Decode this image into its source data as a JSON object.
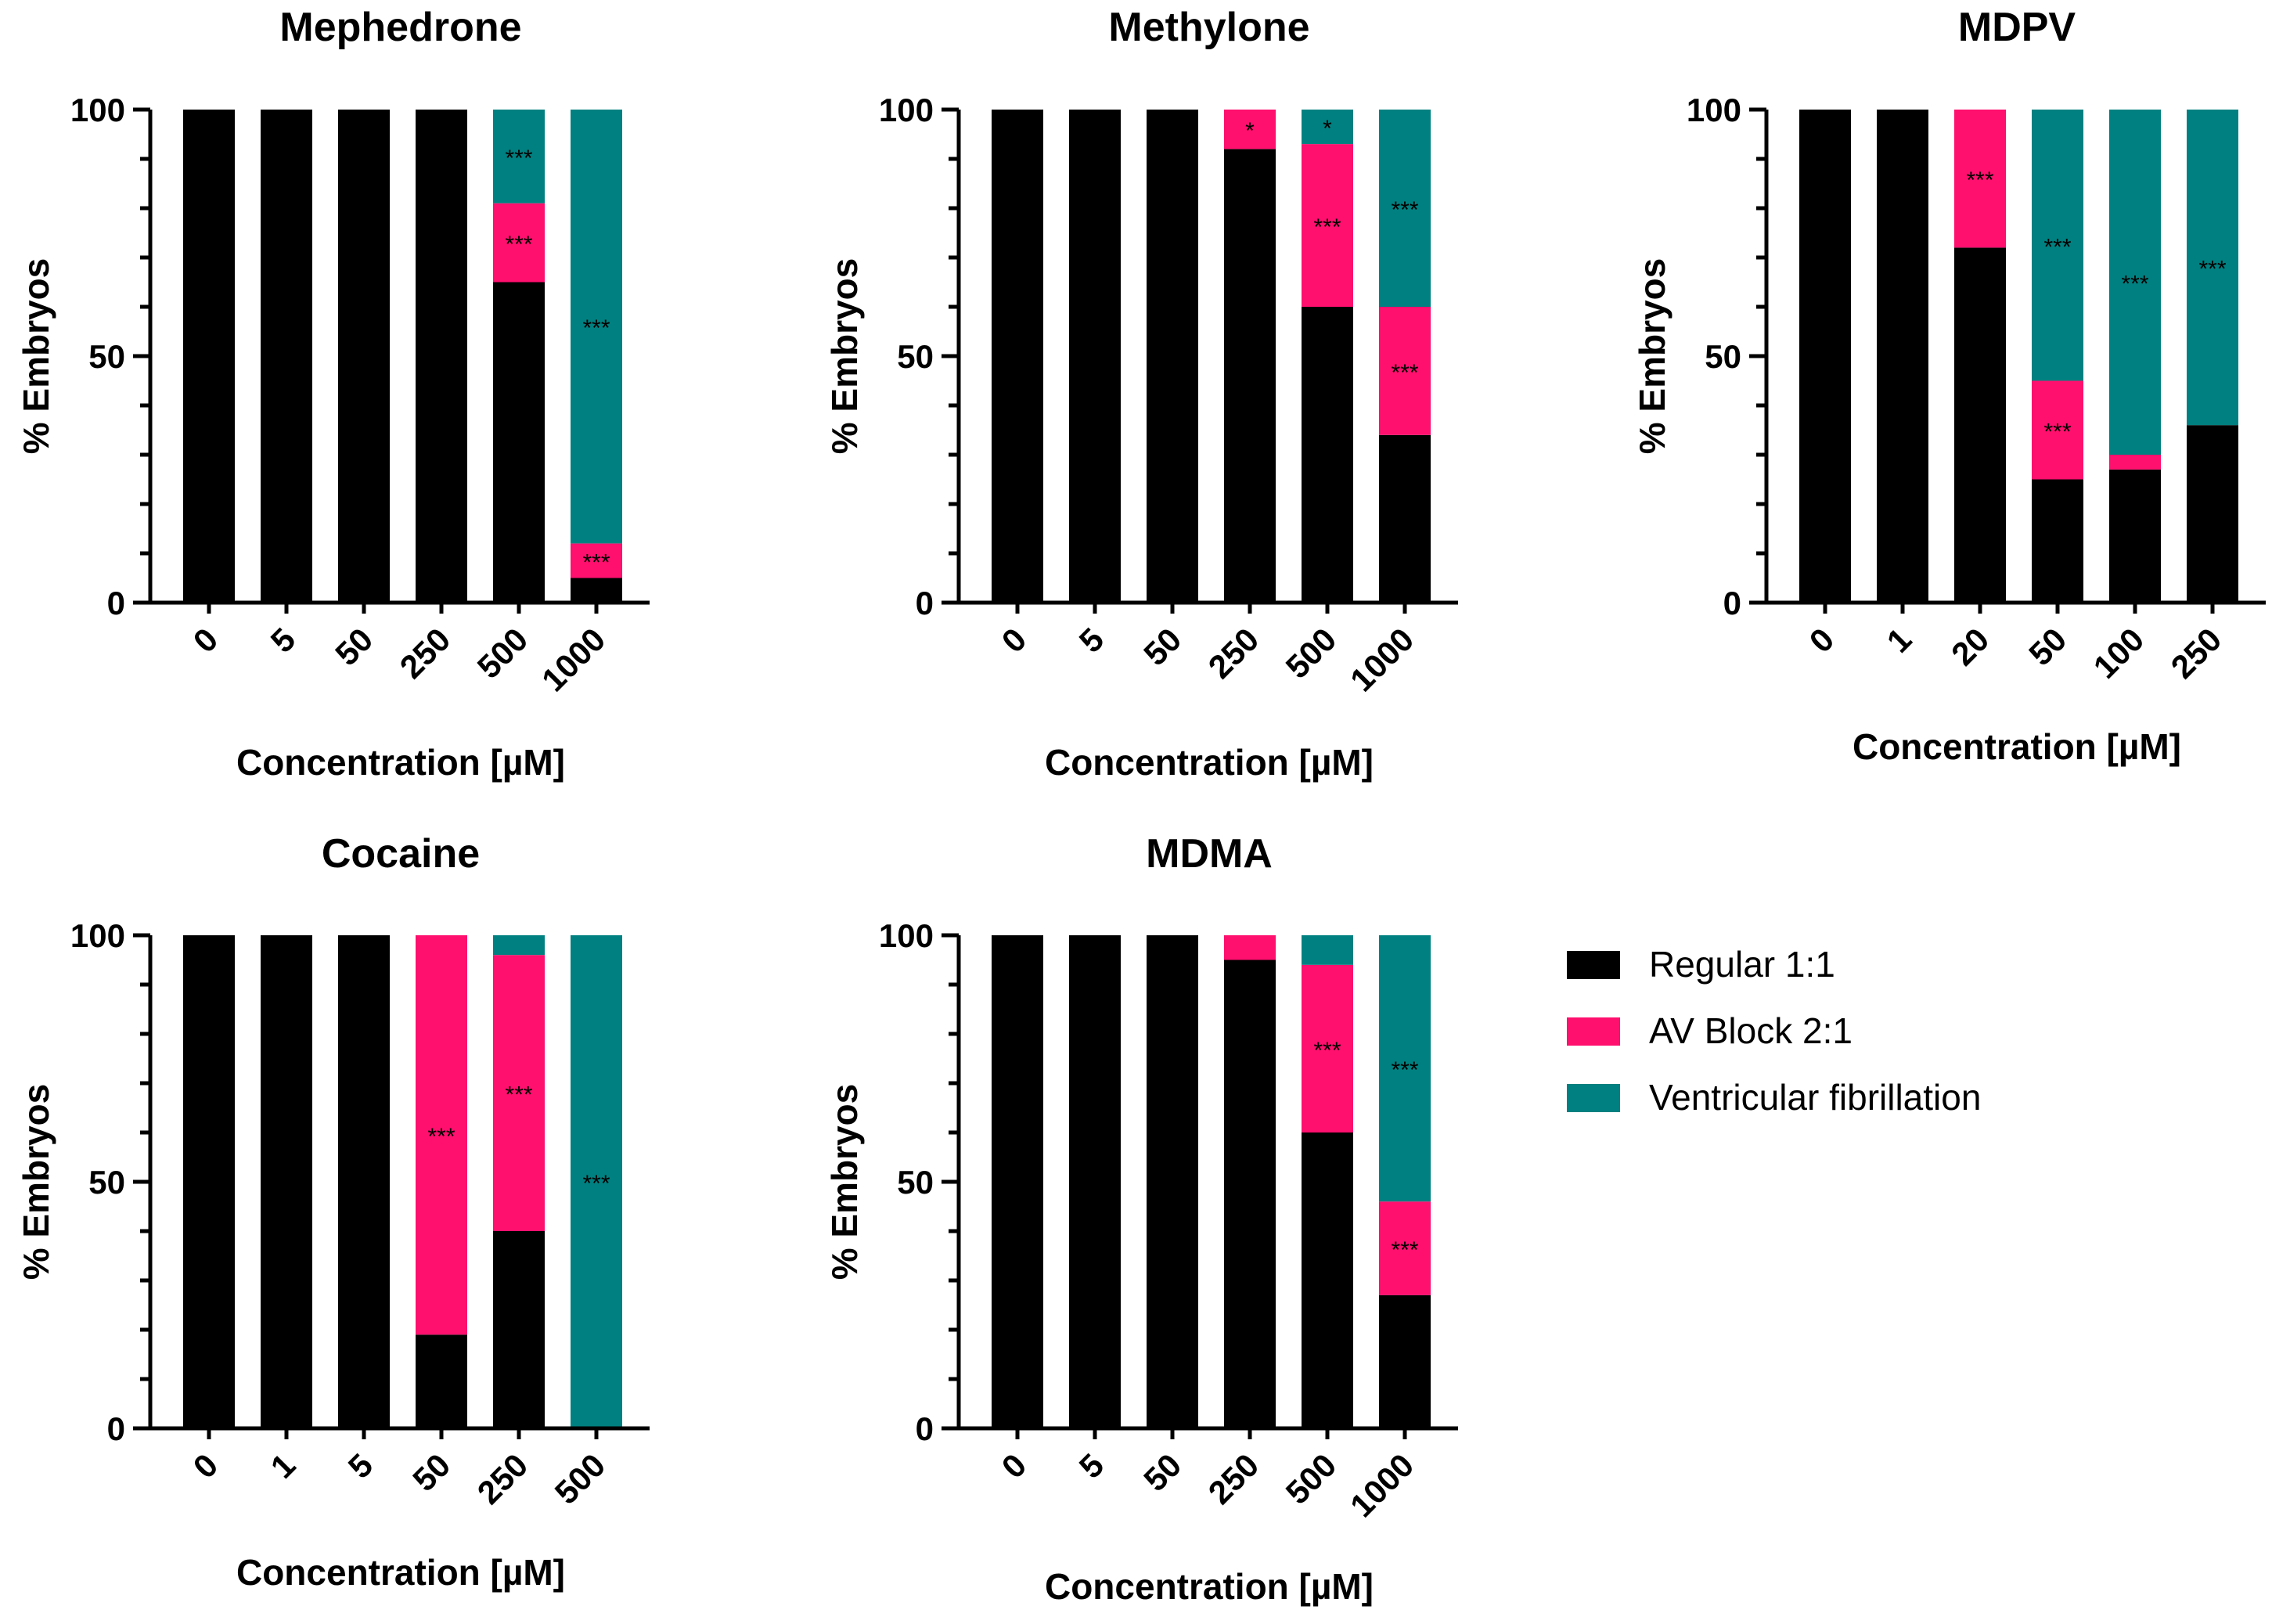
{
  "colors": {
    "regular": "#000000",
    "av_block": "#FF0F6E",
    "vf": "#008080"
  },
  "legend": [
    {
      "name": "Regular 1:1",
      "color": "#000000"
    },
    {
      "name": "AV Block 2:1",
      "color": "#FF0F6E"
    },
    {
      "name": "Ventricular fibrillation",
      "color": "#008080"
    }
  ],
  "chart_data": [
    {
      "type": "bar",
      "stacked": true,
      "title": "Mephedrone",
      "xlabel": "Concentration [µM]",
      "ylabel": "% Embryos",
      "ylim": [
        0,
        100
      ],
      "yticks": [
        "0",
        "50",
        "100"
      ],
      "categories": [
        "0",
        "5",
        "50",
        "250",
        "500",
        "1000"
      ],
      "series": [
        {
          "name": "Regular 1:1",
          "values": [
            100,
            100,
            100,
            100,
            65,
            5
          ]
        },
        {
          "name": "AV Block 2:1",
          "values": [
            0,
            0,
            0,
            0,
            16,
            7
          ]
        },
        {
          "name": "Ventricular fibrillation",
          "values": [
            0,
            0,
            0,
            0,
            19,
            88
          ]
        }
      ],
      "annotations": [
        {
          "category": "500",
          "series": "AV Block 2:1",
          "text": "***"
        },
        {
          "category": "500",
          "series": "Ventricular fibrillation",
          "text": "***"
        },
        {
          "category": "1000",
          "series": "AV Block 2:1",
          "text": "***"
        },
        {
          "category": "1000",
          "series": "Ventricular fibrillation",
          "text": "***"
        }
      ]
    },
    {
      "type": "bar",
      "stacked": true,
      "title": "Methylone",
      "xlabel": "Concentration [µM]",
      "ylabel": "% Embryos",
      "ylim": [
        0,
        100
      ],
      "yticks": [
        "0",
        "50",
        "100"
      ],
      "categories": [
        "0",
        "5",
        "50",
        "250",
        "500",
        "1000"
      ],
      "series": [
        {
          "name": "Regular 1:1",
          "values": [
            100,
            100,
            100,
            92,
            60,
            34
          ]
        },
        {
          "name": "AV Block 2:1",
          "values": [
            0,
            0,
            0,
            8,
            33,
            26
          ]
        },
        {
          "name": "Ventricular fibrillation",
          "values": [
            0,
            0,
            0,
            0,
            7,
            40
          ]
        }
      ],
      "annotations": [
        {
          "category": "250",
          "series": "AV Block 2:1",
          "text": "*"
        },
        {
          "category": "500",
          "series": "AV Block 2:1",
          "text": "***"
        },
        {
          "category": "500",
          "series": "Ventricular fibrillation",
          "text": "*"
        },
        {
          "category": "1000",
          "series": "AV Block 2:1",
          "text": "***"
        },
        {
          "category": "1000",
          "series": "Ventricular fibrillation",
          "text": "***"
        }
      ]
    },
    {
      "type": "bar",
      "stacked": true,
      "title": "MDPV",
      "xlabel": "Concentration [µM]",
      "ylabel": "% Embryos",
      "ylim": [
        0,
        100
      ],
      "yticks": [
        "0",
        "50",
        "100"
      ],
      "categories": [
        "0",
        "1",
        "20",
        "50",
        "100",
        "250"
      ],
      "series": [
        {
          "name": "Regular 1:1",
          "values": [
            100,
            100,
            72,
            25,
            27,
            36
          ]
        },
        {
          "name": "AV Block 2:1",
          "values": [
            0,
            0,
            28,
            20,
            3,
            0
          ]
        },
        {
          "name": "Ventricular fibrillation",
          "values": [
            0,
            0,
            0,
            55,
            70,
            64
          ]
        }
      ],
      "annotations": [
        {
          "category": "20",
          "series": "AV Block 2:1",
          "text": "***"
        },
        {
          "category": "50",
          "series": "AV Block 2:1",
          "text": "***"
        },
        {
          "category": "50",
          "series": "Ventricular fibrillation",
          "text": "***"
        },
        {
          "category": "100",
          "series": "Ventricular fibrillation",
          "text": "***"
        },
        {
          "category": "250",
          "series": "Ventricular fibrillation",
          "text": "***"
        }
      ]
    },
    {
      "type": "bar",
      "stacked": true,
      "title": "Cocaine",
      "xlabel": "Concentration [µM]",
      "ylabel": "% Embryos",
      "ylim": [
        0,
        100
      ],
      "yticks": [
        "0",
        "50",
        "100"
      ],
      "categories": [
        "0",
        "1",
        "5",
        "50",
        "250",
        "500"
      ],
      "series": [
        {
          "name": "Regular 1:1",
          "values": [
            100,
            100,
            100,
            19,
            40,
            0
          ]
        },
        {
          "name": "AV Block 2:1",
          "values": [
            0,
            0,
            0,
            81,
            56,
            0
          ]
        },
        {
          "name": "Ventricular fibrillation",
          "values": [
            0,
            0,
            0,
            0,
            4,
            100
          ]
        }
      ],
      "annotations": [
        {
          "category": "50",
          "series": "AV Block 2:1",
          "text": "***"
        },
        {
          "category": "250",
          "series": "AV Block 2:1",
          "text": "***"
        },
        {
          "category": "500",
          "series": "Ventricular fibrillation",
          "text": "***"
        }
      ]
    },
    {
      "type": "bar",
      "stacked": true,
      "title": "MDMA",
      "xlabel": "Concentration [µM]",
      "ylabel": "% Embryos",
      "ylim": [
        0,
        100
      ],
      "yticks": [
        "0",
        "50",
        "100"
      ],
      "categories": [
        "0",
        "5",
        "50",
        "250",
        "500",
        "1000"
      ],
      "series": [
        {
          "name": "Regular 1:1",
          "values": [
            100,
            100,
            100,
            95,
            60,
            27
          ]
        },
        {
          "name": "AV Block 2:1",
          "values": [
            0,
            0,
            0,
            5,
            34,
            19
          ]
        },
        {
          "name": "Ventricular fibrillation",
          "values": [
            0,
            0,
            0,
            0,
            6,
            54
          ]
        }
      ],
      "annotations": [
        {
          "category": "500",
          "series": "AV Block 2:1",
          "text": "***"
        },
        {
          "category": "1000",
          "series": "AV Block 2:1",
          "text": "***"
        },
        {
          "category": "1000",
          "series": "Ventricular fibrillation",
          "text": "***"
        }
      ]
    }
  ]
}
